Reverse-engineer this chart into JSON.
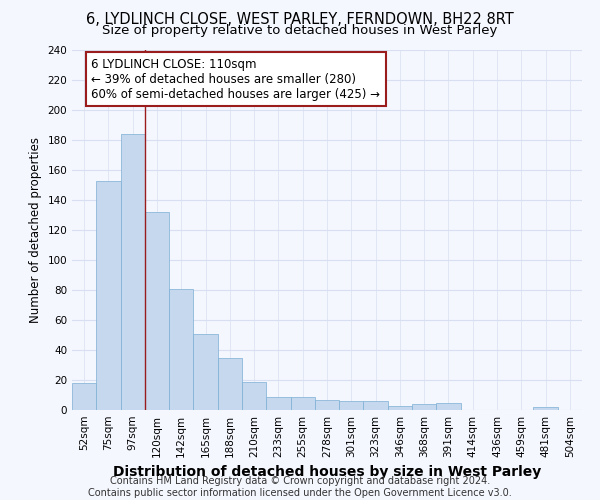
{
  "title": "6, LYDLINCH CLOSE, WEST PARLEY, FERNDOWN, BH22 8RT",
  "subtitle": "Size of property relative to detached houses in West Parley",
  "xlabel": "Distribution of detached houses by size in West Parley",
  "ylabel": "Number of detached properties",
  "categories": [
    "52sqm",
    "75sqm",
    "97sqm",
    "120sqm",
    "142sqm",
    "165sqm",
    "188sqm",
    "210sqm",
    "233sqm",
    "255sqm",
    "278sqm",
    "301sqm",
    "323sqm",
    "346sqm",
    "368sqm",
    "391sqm",
    "414sqm",
    "436sqm",
    "459sqm",
    "481sqm",
    "504sqm"
  ],
  "values": [
    18,
    153,
    184,
    132,
    81,
    51,
    35,
    19,
    9,
    9,
    7,
    6,
    6,
    3,
    4,
    5,
    0,
    0,
    0,
    2,
    0
  ],
  "bar_color": "#c5d8ed",
  "bar_edge_color": "#7bafd4",
  "marker_color": "#9b1c1c",
  "annotation_text": "6 LYDLINCH CLOSE: 110sqm\n← 39% of detached houses are smaller (280)\n60% of semi-detached houses are larger (425) →",
  "annotation_box_color": "#ffffff",
  "annotation_box_edge": "#9b1c1c",
  "ylim": [
    0,
    240
  ],
  "yticks": [
    0,
    20,
    40,
    60,
    80,
    100,
    120,
    140,
    160,
    180,
    200,
    220,
    240
  ],
  "footer": "Contains HM Land Registry data © Crown copyright and database right 2024.\nContains public sector information licensed under the Open Government Licence v3.0.",
  "bg_color": "#f5f7ff",
  "grid_color": "#d8dff0",
  "title_fontsize": 10.5,
  "subtitle_fontsize": 9.5,
  "xlabel_fontsize": 10,
  "ylabel_fontsize": 8.5,
  "tick_fontsize": 7.5,
  "footer_fontsize": 7,
  "annot_fontsize": 8.5
}
